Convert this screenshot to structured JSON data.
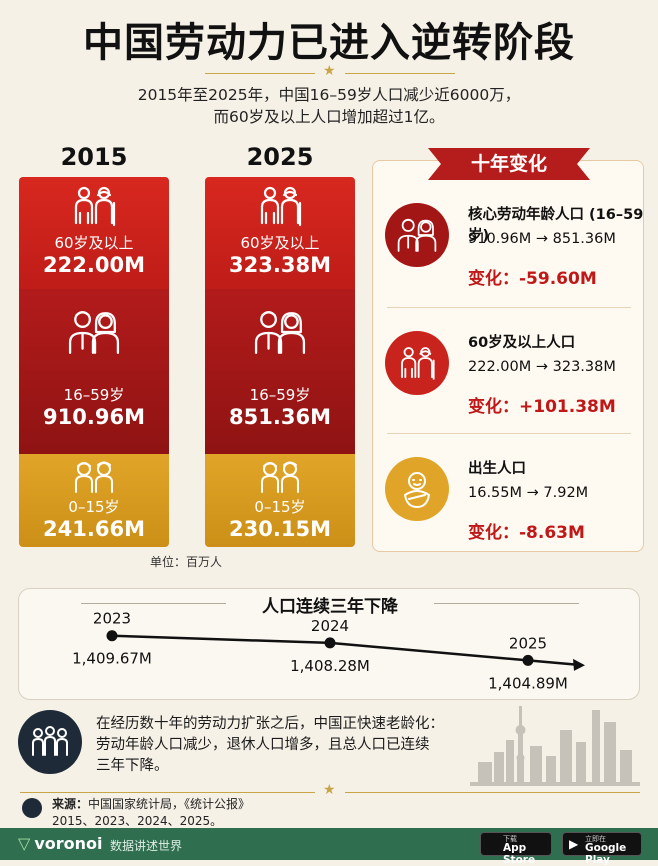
{
  "title": "中国劳动力已进入逆转阶段",
  "subtitle_line1": "2015年至2025年，中国16–59岁人口减少近6000万，",
  "subtitle_line2": "而60岁及以上人口增加超过1亿。",
  "colors": {
    "red": "#d8281f",
    "dark_red": "#a31616",
    "gold": "#e0a528",
    "navy": "#1f2a38",
    "green": "#2f6e4f"
  },
  "chart_data": [
    {
      "type": "bar",
      "stacked": true,
      "unit": "单位：百万人",
      "categories": [
        "2015",
        "2025"
      ],
      "series": [
        {
          "name": "60岁及以上",
          "values": [
            222.0,
            323.38
          ],
          "labels": [
            "222.00M",
            "323.38M"
          ]
        },
        {
          "name": "16–59岁",
          "values": [
            910.96,
            851.36
          ],
          "labels": [
            "910.96M",
            "851.36M"
          ]
        },
        {
          "name": "0–15岁",
          "values": [
            241.66,
            230.15
          ],
          "labels": [
            "241.66M",
            "230.15M"
          ]
        }
      ]
    },
    {
      "type": "line",
      "title": "人口连续三年下降",
      "x": [
        "2023",
        "2024",
        "2025"
      ],
      "values": [
        1409.67,
        1408.28,
        1404.89
      ],
      "labels": [
        "1,409.67M",
        "1,408.28M",
        "1,404.89M"
      ]
    }
  ],
  "panel": {
    "title": "十年变化",
    "items": [
      {
        "icon": "elderly-couple-icon",
        "name": "核心劳动年龄人口 (16–59岁)",
        "range": "910.96M → 851.36M",
        "delta": "变化：-59.60M"
      },
      {
        "icon": "elderly-couple-icon",
        "name": "60岁及以上人口",
        "range": "222.00M → 323.38M",
        "delta": "变化：+101.38M"
      },
      {
        "icon": "baby-icon",
        "name": "出生人口",
        "range": "16.55M → 7.92M",
        "delta": "变化：-8.63M"
      }
    ]
  },
  "note": {
    "line1": "在经历数十年的劳动力扩张之后，中国正快速老龄化：",
    "line2": "劳动年龄人口减少，退休人口增多，且总人口已连续",
    "line3": "三年下降。"
  },
  "source": {
    "label": "来源：",
    "line1": "中国国家统计局，《统计公报》",
    "line2": "2015、2023、2024、2025。"
  },
  "footer": {
    "brand": "voronoi",
    "slogan": "数据讲述世界",
    "appstore_small": "下载",
    "appstore_large": "App Store",
    "googleplay_small": "立即在",
    "googleplay_large": "Google Play"
  }
}
